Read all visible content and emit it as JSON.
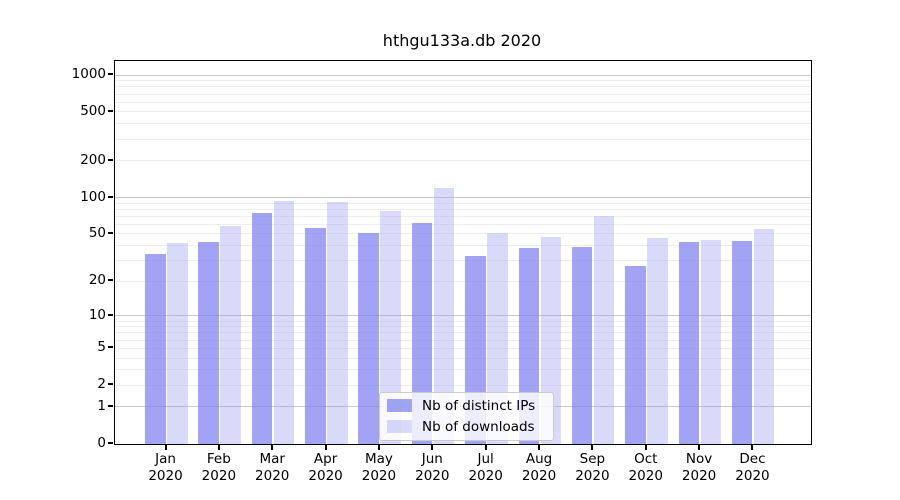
{
  "chart_data": {
    "type": "bar",
    "title": "hthgu133a.db 2020",
    "categories": [
      "Jan 2020",
      "Feb 2020",
      "Mar 2020",
      "Apr 2020",
      "May 2020",
      "Jun 2020",
      "Jul 2020",
      "Aug 2020",
      "Sep 2020",
      "Oct 2020",
      "Nov 2020",
      "Dec 2020"
    ],
    "series": [
      {
        "name": "Nb of distinct IPs",
        "color": "rgba(128,128,238,0.72)",
        "color_hex": "#a4a4f2",
        "values": [
          34,
          43,
          74,
          56,
          51,
          62,
          33,
          38,
          39,
          27,
          43,
          44
        ]
      },
      {
        "name": "Nb of downloads",
        "color": "rgba(160,160,240,0.40)",
        "color_hex": "#dadaf8",
        "values": [
          42,
          58,
          94,
          92,
          78,
          120,
          51,
          47,
          70,
          46,
          45,
          55
        ]
      }
    ],
    "yticks": [
      0,
      1,
      2,
      5,
      10,
      20,
      50,
      100,
      200,
      500,
      1000
    ],
    "ylim": [
      0,
      1300
    ],
    "yscale": "log10(value+1)",
    "grid": true,
    "legend_position": "lower center inside plot",
    "xlabel": "",
    "ylabel": ""
  },
  "colors": {
    "major_grid": "#c7c7c7",
    "minor_grid": "#ededed",
    "axis": "#000000",
    "legend_border": "#cccccc",
    "legend_bg": "rgba(255,255,255,0.8)"
  }
}
